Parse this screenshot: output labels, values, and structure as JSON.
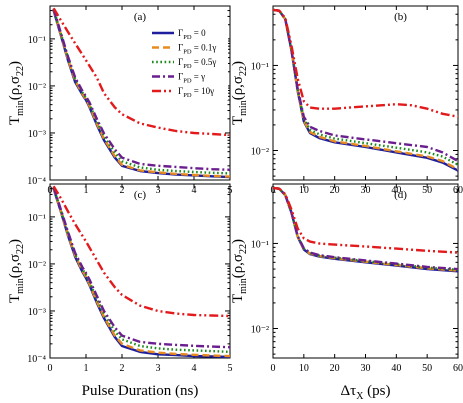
{
  "chart_data": [
    {
      "panel_label": "(a)",
      "type": "line",
      "yscale": "log",
      "xlim": [
        0,
        5
      ],
      "ylim": [
        0.0001,
        0.5
      ],
      "xticks": [
        "0",
        "1",
        "2",
        "3",
        "4",
        "5"
      ],
      "yticks": [
        "10⁻¹",
        "10⁻²",
        "10⁻³",
        "10⁻⁴"
      ],
      "ylabel": "T_min(ρ,σ22)",
      "xlabel": "",
      "legend": {
        "position": "top-right",
        "entries": [
          "ΓPD = 0",
          "ΓPD = 0.1γ",
          "ΓPD = 0.5γ",
          "ΓPD = γ",
          "ΓPD = 10γ"
        ]
      },
      "series": [
        {
          "name": "ΓPD = 0",
          "color": "#1f1f9e",
          "dash": "solid",
          "x": [
            0.1,
            0.3,
            0.5,
            0.7,
            0.9,
            1.0,
            1.1,
            1.3,
            1.5,
            1.8,
            2.0,
            2.5,
            3.0,
            3.5,
            4.0,
            4.5,
            5.0
          ],
          "y": [
            0.4,
            0.12,
            0.035,
            0.012,
            0.0065,
            0.005,
            0.0035,
            0.0015,
            0.0007,
            0.0003,
            0.0002,
            0.000155,
            0.00014,
            0.00013,
            0.000125,
            0.00012,
            0.000115
          ]
        },
        {
          "name": "ΓPD = 0.1γ",
          "color": "#e88b1e",
          "dash": "dash",
          "x": [
            0.1,
            0.3,
            0.5,
            0.7,
            0.9,
            1.0,
            1.1,
            1.3,
            1.5,
            1.8,
            2.0,
            2.5,
            3.0,
            3.5,
            4.0,
            4.5,
            5.0
          ],
          "y": [
            0.42,
            0.125,
            0.037,
            0.013,
            0.0068,
            0.0052,
            0.0037,
            0.0016,
            0.00075,
            0.00032,
            0.00021,
            0.00016,
            0.000145,
            0.000135,
            0.000128,
            0.000122,
            0.000118
          ]
        },
        {
          "name": "ΓPD = 0.5γ",
          "color": "#1a8a1a",
          "dash": "dot",
          "x": [
            0.1,
            0.3,
            0.5,
            0.7,
            0.9,
            1.0,
            1.1,
            1.3,
            1.5,
            1.8,
            2.0,
            2.5,
            3.0,
            3.5,
            4.0,
            4.5,
            5.0
          ],
          "y": [
            0.43,
            0.13,
            0.04,
            0.014,
            0.0072,
            0.0056,
            0.004,
            0.0018,
            0.00085,
            0.00038,
            0.00025,
            0.000185,
            0.000165,
            0.000155,
            0.000148,
            0.000142,
            0.000138
          ]
        },
        {
          "name": "ΓPD = γ",
          "color": "#6b1f8f",
          "dash": "dashdot",
          "x": [
            0.1,
            0.3,
            0.5,
            0.7,
            0.9,
            1.0,
            1.1,
            1.3,
            1.5,
            1.8,
            2.0,
            2.5,
            3.0,
            3.5,
            4.0,
            4.5,
            5.0
          ],
          "y": [
            0.44,
            0.135,
            0.042,
            0.015,
            0.0078,
            0.006,
            0.0044,
            0.002,
            0.00098,
            0.00045,
            0.0003,
            0.00022,
            0.0002,
            0.00019,
            0.000178,
            0.00017,
            0.000165
          ]
        },
        {
          "name": "ΓPD = 10γ",
          "color": "#e31a1c",
          "dash": "dashdotdot",
          "x": [
            0.1,
            0.3,
            0.5,
            0.7,
            1.0,
            1.3,
            1.5,
            1.8,
            2.0,
            2.5,
            3.0,
            3.5,
            4.0,
            4.5,
            5.0
          ],
          "y": [
            0.45,
            0.25,
            0.14,
            0.08,
            0.035,
            0.015,
            0.007,
            0.0035,
            0.0025,
            0.0016,
            0.0013,
            0.0011,
            0.001,
            0.00095,
            0.0009
          ]
        }
      ]
    },
    {
      "panel_label": "(b)",
      "type": "line",
      "yscale": "log",
      "xlim": [
        0,
        60
      ],
      "ylim": [
        0.0045,
        0.5
      ],
      "xticks": [
        "0",
        "10",
        "20",
        "30",
        "40",
        "50",
        "60"
      ],
      "yticks": [
        "10⁻¹",
        "10⁻²"
      ],
      "ylabel": "T_min(ρ,σ22)",
      "xlabel": "",
      "series": [
        {
          "name": "ΓPD = 0",
          "color": "#1f1f9e",
          "dash": "solid",
          "x": [
            0,
            2,
            4,
            6,
            8,
            10,
            12,
            15,
            20,
            30,
            40,
            50,
            55,
            60
          ],
          "y": [
            0.45,
            0.44,
            0.35,
            0.15,
            0.05,
            0.022,
            0.016,
            0.014,
            0.0125,
            0.011,
            0.0095,
            0.0082,
            0.0072,
            0.0058
          ]
        },
        {
          "name": "ΓPD = 0.1γ",
          "color": "#e88b1e",
          "dash": "dash",
          "x": [
            0,
            2,
            4,
            6,
            8,
            10,
            12,
            15,
            20,
            30,
            40,
            50,
            55,
            60
          ],
          "y": [
            0.45,
            0.44,
            0.35,
            0.15,
            0.051,
            0.0225,
            0.0165,
            0.0145,
            0.0128,
            0.0113,
            0.0098,
            0.0085,
            0.0075,
            0.006
          ]
        },
        {
          "name": "ΓPD = 0.5γ",
          "color": "#1a8a1a",
          "dash": "dot",
          "x": [
            0,
            2,
            4,
            6,
            8,
            10,
            12,
            15,
            20,
            30,
            40,
            50,
            55,
            60
          ],
          "y": [
            0.45,
            0.44,
            0.35,
            0.15,
            0.052,
            0.024,
            0.0175,
            0.0155,
            0.0138,
            0.0122,
            0.0108,
            0.0095,
            0.0085,
            0.0068
          ]
        },
        {
          "name": "ΓPD = γ",
          "color": "#6b1f8f",
          "dash": "dashdot",
          "x": [
            0,
            2,
            4,
            6,
            8,
            10,
            12,
            15,
            20,
            30,
            40,
            50,
            55,
            60
          ],
          "y": [
            0.45,
            0.44,
            0.35,
            0.15,
            0.053,
            0.025,
            0.019,
            0.017,
            0.015,
            0.0135,
            0.0122,
            0.011,
            0.0095,
            0.0075
          ]
        },
        {
          "name": "ΓPD = 10γ",
          "color": "#e31a1c",
          "dash": "dashdotdot",
          "x": [
            0,
            2,
            4,
            6,
            8,
            10,
            12,
            15,
            20,
            25,
            30,
            35,
            40,
            45,
            50,
            55,
            60
          ],
          "y": [
            0.45,
            0.44,
            0.36,
            0.17,
            0.07,
            0.038,
            0.032,
            0.031,
            0.031,
            0.032,
            0.033,
            0.034,
            0.035,
            0.034,
            0.031,
            0.027,
            0.025
          ]
        }
      ]
    },
    {
      "panel_label": "(c)",
      "type": "line",
      "yscale": "log",
      "xlim": [
        0,
        5
      ],
      "ylim": [
        0.0001,
        0.5
      ],
      "xticks": [
        "0",
        "1",
        "2",
        "3",
        "4",
        "5"
      ],
      "yticks": [
        "10⁻¹",
        "10⁻²",
        "10⁻³",
        "10⁻⁴"
      ],
      "ylabel": "T_min(ρ,σ22)",
      "xlabel": "Pulse Duration (ns)",
      "series": [
        {
          "name": "ΓPD = 0",
          "color": "#1f1f9e",
          "dash": "solid",
          "x": [
            0.1,
            0.3,
            0.5,
            0.7,
            0.9,
            1.0,
            1.1,
            1.3,
            1.5,
            1.8,
            2.0,
            2.5,
            3.0,
            3.5,
            4.0,
            4.5,
            5.0
          ],
          "y": [
            0.4,
            0.13,
            0.04,
            0.014,
            0.0068,
            0.005,
            0.0035,
            0.0015,
            0.0007,
            0.00028,
            0.00018,
            0.000135,
            0.00012,
            0.000115,
            0.00011,
            0.000108,
            0.000105
          ]
        },
        {
          "name": "ΓPD = 0.1γ",
          "color": "#e88b1e",
          "dash": "dash",
          "x": [
            0.1,
            0.3,
            0.5,
            0.7,
            0.9,
            1.0,
            1.1,
            1.3,
            1.5,
            1.8,
            2.0,
            2.5,
            3.0,
            3.5,
            4.0,
            4.5,
            5.0
          ],
          "y": [
            0.41,
            0.135,
            0.042,
            0.015,
            0.0072,
            0.0053,
            0.0037,
            0.0016,
            0.00075,
            0.0003,
            0.0002,
            0.000145,
            0.00013,
            0.000122,
            0.000117,
            0.000113,
            0.00011
          ]
        },
        {
          "name": "ΓPD = 0.5γ",
          "color": "#1a8a1a",
          "dash": "dot",
          "x": [
            0.1,
            0.3,
            0.5,
            0.7,
            0.9,
            1.0,
            1.1,
            1.3,
            1.5,
            1.8,
            2.0,
            2.5,
            3.0,
            3.5,
            4.0,
            4.5,
            5.0
          ],
          "y": [
            0.42,
            0.14,
            0.045,
            0.016,
            0.0078,
            0.0058,
            0.0041,
            0.0018,
            0.00088,
            0.00037,
            0.00025,
            0.00018,
            0.00016,
            0.00015,
            0.000145,
            0.00014,
            0.000135
          ]
        },
        {
          "name": "ΓPD = γ",
          "color": "#6b1f8f",
          "dash": "dashdot",
          "x": [
            0.1,
            0.3,
            0.5,
            0.7,
            0.9,
            1.0,
            1.1,
            1.3,
            1.5,
            1.8,
            2.0,
            2.5,
            3.0,
            3.5,
            4.0,
            4.5,
            5.0
          ],
          "y": [
            0.43,
            0.145,
            0.048,
            0.017,
            0.0085,
            0.0064,
            0.0046,
            0.0021,
            0.001,
            0.00045,
            0.0003,
            0.00022,
            0.0002,
            0.00019,
            0.000182,
            0.000175,
            0.00017
          ]
        },
        {
          "name": "ΓPD = 10γ",
          "color": "#e31a1c",
          "dash": "dashdotdot",
          "x": [
            0.1,
            0.3,
            0.5,
            0.7,
            1.0,
            1.3,
            1.5,
            1.8,
            2.0,
            2.5,
            3.0,
            3.5,
            4.0,
            4.5,
            5.0
          ],
          "y": [
            0.45,
            0.25,
            0.13,
            0.07,
            0.03,
            0.012,
            0.0065,
            0.0032,
            0.0022,
            0.0013,
            0.001,
            0.00088,
            0.00082,
            0.0008,
            0.00078
          ]
        }
      ]
    },
    {
      "panel_label": "(d)",
      "type": "line",
      "yscale": "log",
      "xlim": [
        0,
        60
      ],
      "ylim": [
        0.0045,
        0.5
      ],
      "xticks": [
        "0",
        "10",
        "20",
        "30",
        "40",
        "50",
        "60"
      ],
      "yticks": [
        "10⁻¹",
        "10⁻²"
      ],
      "ylabel": "T_min(ρ,σ22)",
      "xlabel": "Δτ_X (ps)",
      "series": [
        {
          "name": "ΓPD = 0",
          "color": "#1f1f9e",
          "dash": "solid",
          "x": [
            0,
            2,
            4,
            6,
            8,
            10,
            12,
            15,
            20,
            30,
            40,
            50,
            60
          ],
          "y": [
            0.45,
            0.44,
            0.37,
            0.23,
            0.12,
            0.085,
            0.075,
            0.07,
            0.066,
            0.06,
            0.055,
            0.05,
            0.047
          ]
        },
        {
          "name": "ΓPD = 0.1γ",
          "color": "#e88b1e",
          "dash": "dash",
          "x": [
            0,
            2,
            4,
            6,
            8,
            10,
            12,
            15,
            20,
            30,
            40,
            50,
            60
          ],
          "y": [
            0.45,
            0.44,
            0.37,
            0.23,
            0.12,
            0.086,
            0.076,
            0.071,
            0.067,
            0.061,
            0.056,
            0.051,
            0.048
          ]
        },
        {
          "name": "ΓPD = 0.5γ",
          "color": "#1a8a1a",
          "dash": "dot",
          "x": [
            0,
            2,
            4,
            6,
            8,
            10,
            12,
            15,
            20,
            30,
            40,
            50,
            60
          ],
          "y": [
            0.45,
            0.44,
            0.37,
            0.23,
            0.121,
            0.087,
            0.077,
            0.072,
            0.068,
            0.062,
            0.057,
            0.052,
            0.049
          ]
        },
        {
          "name": "ΓPD = γ",
          "color": "#6b1f8f",
          "dash": "dashdot",
          "x": [
            0,
            2,
            4,
            6,
            8,
            10,
            12,
            15,
            20,
            30,
            40,
            50,
            60
          ],
          "y": [
            0.45,
            0.44,
            0.37,
            0.23,
            0.122,
            0.088,
            0.078,
            0.073,
            0.069,
            0.063,
            0.058,
            0.053,
            0.05
          ]
        },
        {
          "name": "ΓPD = 10γ",
          "color": "#e31a1c",
          "dash": "dashdotdot",
          "x": [
            0,
            2,
            4,
            6,
            8,
            10,
            12,
            15,
            20,
            30,
            40,
            50,
            60
          ],
          "y": [
            0.45,
            0.44,
            0.38,
            0.25,
            0.15,
            0.115,
            0.105,
            0.1,
            0.097,
            0.092,
            0.087,
            0.082,
            0.078
          ]
        }
      ]
    }
  ]
}
